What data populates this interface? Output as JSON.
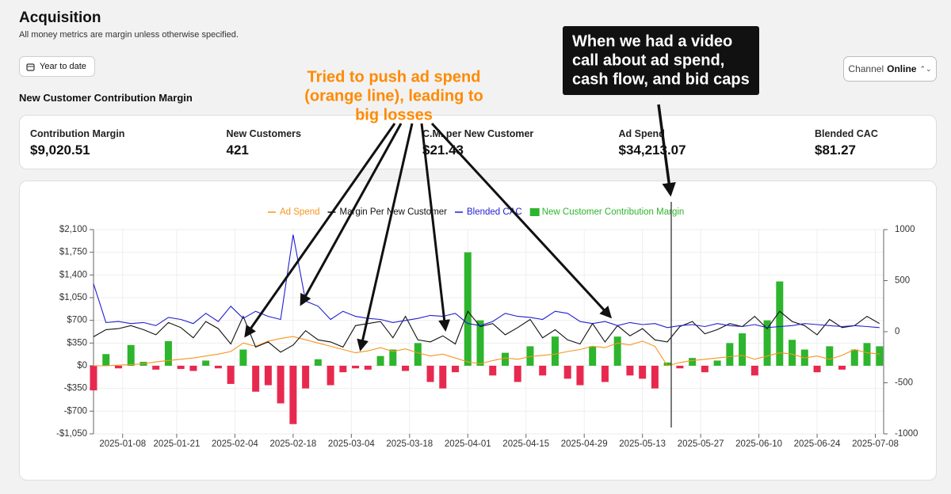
{
  "header": {
    "title": "Acquisition",
    "subtitle": "All money metrics are margin unless otherwise specified.",
    "date_button": "Year to date",
    "channel_label": "Channel",
    "channel_value": "Online",
    "section_title": "New Customer Contribution Margin"
  },
  "metrics": [
    {
      "label": "Contribution Margin",
      "value": "$9,020.51"
    },
    {
      "label": "New Customers",
      "value": "421"
    },
    {
      "label": "C.M. per New Customer",
      "value": "$21.43"
    },
    {
      "label": "Ad Spend",
      "value": "$34,213.07"
    },
    {
      "label": "Blended CAC",
      "value": "$81.27"
    }
  ],
  "annotations": [
    {
      "lines": [
        "Tried to push ad spend",
        "(orange line), leading to",
        "big losses"
      ],
      "color": "#ff8a00"
    },
    {
      "lines": [
        "When we had a video",
        "call about ad spend,",
        "cash flow, and bid caps"
      ],
      "color": "#111111"
    }
  ],
  "chart_data": {
    "type": "combo",
    "x": [
      "2025-01-01",
      "2025-01-04",
      "2025-01-07",
      "2025-01-10",
      "2025-01-13",
      "2025-01-16",
      "2025-01-19",
      "2025-01-22",
      "2025-01-25",
      "2025-01-28",
      "2025-01-31",
      "2025-02-03",
      "2025-02-06",
      "2025-02-09",
      "2025-02-12",
      "2025-02-15",
      "2025-02-18",
      "2025-02-21",
      "2025-02-24",
      "2025-02-27",
      "2025-03-02",
      "2025-03-05",
      "2025-03-08",
      "2025-03-11",
      "2025-03-14",
      "2025-03-17",
      "2025-03-20",
      "2025-03-23",
      "2025-03-26",
      "2025-03-29",
      "2025-04-01",
      "2025-04-04",
      "2025-04-07",
      "2025-04-10",
      "2025-04-13",
      "2025-04-16",
      "2025-04-19",
      "2025-04-22",
      "2025-04-25",
      "2025-04-28",
      "2025-05-01",
      "2025-05-04",
      "2025-05-07",
      "2025-05-10",
      "2025-05-13",
      "2025-05-16",
      "2025-05-19",
      "2025-05-22",
      "2025-05-25",
      "2025-05-28",
      "2025-05-31",
      "2025-06-03",
      "2025-06-06",
      "2025-06-09",
      "2025-06-12",
      "2025-06-15",
      "2025-06-18",
      "2025-06-21",
      "2025-06-24",
      "2025-06-27",
      "2025-06-30",
      "2025-07-03",
      "2025-07-06",
      "2025-07-09"
    ],
    "xlim": [
      "2025-01-01",
      "2025-07-10"
    ],
    "xticks": [
      "2025-01-08",
      "2025-01-21",
      "2025-02-04",
      "2025-02-18",
      "2025-03-04",
      "2025-03-18",
      "2025-04-01",
      "2025-04-15",
      "2025-04-29",
      "2025-05-13",
      "2025-05-27",
      "2025-06-10",
      "2025-06-24",
      "2025-07-08"
    ],
    "ylim": [
      -1050,
      2100
    ],
    "yticks": [
      {
        "value": 2100,
        "label": "$2,100"
      },
      {
        "value": 1750,
        "label": "$1,750"
      },
      {
        "value": 1400,
        "label": "$1,400"
      },
      {
        "value": 1050,
        "label": "$1,050"
      },
      {
        "value": 700,
        "label": "$700"
      },
      {
        "value": 350,
        "label": "$350"
      },
      {
        "value": 0,
        "label": "$0"
      },
      {
        "value": -350,
        "label": "-$350"
      },
      {
        "value": -700,
        "label": "-$700"
      },
      {
        "value": -1050,
        "label": "-$1,050"
      }
    ],
    "y2lim": [
      -1000,
      1000
    ],
    "y2ticks": [
      1000,
      500,
      0,
      -500,
      -1000
    ],
    "grid": true,
    "legend": "top",
    "series": [
      {
        "name": "Ad Spend",
        "type": "line",
        "color": "#f7941d",
        "values": [
          0,
          0,
          10,
          20,
          30,
          60,
          80,
          100,
          120,
          150,
          180,
          220,
          350,
          300,
          380,
          420,
          450,
          400,
          350,
          300,
          250,
          200,
          230,
          280,
          220,
          260,
          200,
          150,
          180,
          120,
          60,
          30,
          80,
          120,
          100,
          140,
          160,
          180,
          220,
          250,
          300,
          280,
          350,
          320,
          380,
          300,
          0,
          50,
          80,
          100,
          120,
          140,
          160,
          100,
          150,
          200,
          180,
          120,
          150,
          100,
          160,
          250,
          200,
          180
        ]
      },
      {
        "name": "Margin Per New Customer",
        "type": "line",
        "axis": "y2",
        "color": "#111111",
        "values": [
          -50,
          20,
          30,
          60,
          20,
          -30,
          90,
          40,
          -60,
          100,
          30,
          -120,
          150,
          -150,
          -100,
          -200,
          -130,
          10,
          -80,
          -100,
          -150,
          60,
          80,
          100,
          -60,
          150,
          -80,
          -100,
          -40,
          -120,
          200,
          50,
          80,
          -30,
          40,
          120,
          -60,
          20,
          -80,
          -120,
          80,
          -100,
          60,
          -40,
          30,
          -80,
          -100,
          50,
          100,
          -20,
          20,
          80,
          50,
          150,
          30,
          200,
          100,
          60,
          -30,
          120,
          40,
          60,
          150,
          80
        ]
      },
      {
        "name": "Blended CAC",
        "type": "line",
        "axis": "y2",
        "color": "#1f1fd1",
        "values": [
          470,
          90,
          100,
          80,
          90,
          60,
          140,
          120,
          80,
          180,
          100,
          250,
          130,
          200,
          150,
          120,
          950,
          300,
          250,
          120,
          200,
          150,
          130,
          120,
          90,
          110,
          130,
          160,
          150,
          180,
          80,
          60,
          100,
          180,
          150,
          140,
          120,
          200,
          180,
          100,
          80,
          100,
          60,
          90,
          70,
          80,
          40,
          60,
          70,
          50,
          80,
          60,
          50,
          70,
          40,
          50,
          60,
          80,
          70,
          60,
          50,
          60,
          50,
          40
        ]
      },
      {
        "name": "New Customer Contribution Margin",
        "type": "bar",
        "color": "#2db52d",
        "negative_color": "#e8294f",
        "values": [
          -380,
          180,
          -40,
          320,
          60,
          -60,
          380,
          -50,
          -80,
          80,
          -40,
          -280,
          250,
          -400,
          -300,
          -580,
          -900,
          -350,
          100,
          -300,
          -100,
          -40,
          -60,
          150,
          250,
          -80,
          350,
          -250,
          -350,
          -100,
          1750,
          700,
          -150,
          200,
          -250,
          300,
          -150,
          450,
          -200,
          -300,
          300,
          -250,
          450,
          -150,
          -200,
          -350,
          50,
          -40,
          120,
          -100,
          80,
          350,
          500,
          -150,
          700,
          1300,
          400,
          250,
          -100,
          300,
          -60,
          250,
          350,
          300
        ]
      }
    ]
  }
}
